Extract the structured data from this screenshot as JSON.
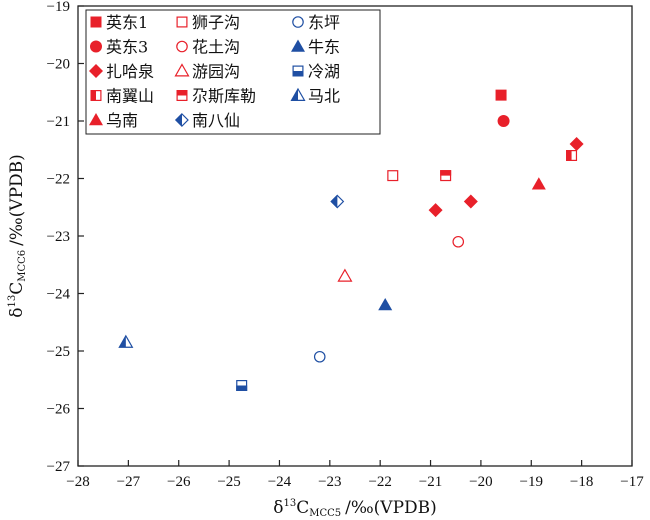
{
  "colors": {
    "red": "#e8202a",
    "blue": "#1f4fa3",
    "axis": "#222222"
  },
  "chart_data": {
    "type": "scatter",
    "xlabel": {
      "delta": "δ",
      "sup": "13",
      "c": "C",
      "sub": "MCC5",
      "unit": "/‰(VPDB)"
    },
    "ylabel": {
      "delta": "δ",
      "sup": "13",
      "c": "C",
      "sub": "MCC6",
      "unit": "/‰(VPDB)"
    },
    "xlim": [
      -28,
      -17
    ],
    "ylim": [
      -27,
      -19
    ],
    "xticks": [
      -28,
      -27,
      -26,
      -25,
      -24,
      -23,
      -22,
      -21,
      -20,
      -19,
      -18,
      -17
    ],
    "yticks": [
      -19,
      -20,
      -21,
      -22,
      -23,
      -24,
      -25,
      -26,
      -27
    ],
    "grid": false,
    "legend_position": "top-left",
    "series": [
      {
        "name": "英东1",
        "color": "red",
        "marker": "square-filled",
        "x": [
          -19.6
        ],
        "y": [
          -20.55
        ]
      },
      {
        "name": "英东3",
        "color": "red",
        "marker": "circle-filled",
        "x": [
          -19.55
        ],
        "y": [
          -21.0
        ]
      },
      {
        "name": "扎哈泉",
        "color": "red",
        "marker": "diamond-filled",
        "x": [
          -20.9,
          -20.2,
          -18.1
        ],
        "y": [
          -22.55,
          -22.4,
          -21.4
        ]
      },
      {
        "name": "南翼山",
        "color": "red",
        "marker": "square-left-half",
        "x": [
          -18.2
        ],
        "y": [
          -21.6
        ]
      },
      {
        "name": "乌南",
        "color": "red",
        "marker": "triangle-filled",
        "x": [
          -18.85
        ],
        "y": [
          -22.1
        ]
      },
      {
        "name": "狮子沟",
        "color": "red",
        "marker": "square-open",
        "x": [
          -21.75
        ],
        "y": [
          -21.95
        ]
      },
      {
        "name": "花土沟",
        "color": "red",
        "marker": "circle-open",
        "x": [
          -20.45
        ],
        "y": [
          -23.1
        ]
      },
      {
        "name": "游园沟",
        "color": "red",
        "marker": "triangle-open",
        "x": [
          -22.7
        ],
        "y": [
          -23.7
        ]
      },
      {
        "name": "尕斯库勒",
        "color": "red",
        "marker": "square-top-half",
        "x": [
          -20.7
        ],
        "y": [
          -21.95
        ]
      },
      {
        "name": "南八仙",
        "color": "blue",
        "marker": "diamond-left-half",
        "x": [
          -22.85
        ],
        "y": [
          -22.4
        ]
      },
      {
        "name": "东坪",
        "color": "blue",
        "marker": "circle-open",
        "x": [
          -23.2
        ],
        "y": [
          -25.1
        ]
      },
      {
        "name": "牛东",
        "color": "blue",
        "marker": "triangle-filled",
        "x": [
          -21.9
        ],
        "y": [
          -24.2
        ]
      },
      {
        "name": "冷湖",
        "color": "blue",
        "marker": "square-bottom-half",
        "x": [
          -24.75
        ],
        "y": [
          -25.6
        ]
      },
      {
        "name": "马北",
        "color": "blue",
        "marker": "triangle-left-half",
        "x": [
          -27.05
        ],
        "y": [
          -24.85
        ]
      }
    ],
    "legend_columns": [
      [
        "英东1",
        "英东3",
        "扎哈泉",
        "南翼山",
        "乌南"
      ],
      [
        "狮子沟",
        "花土沟",
        "游园沟",
        "尕斯库勒",
        "南八仙"
      ],
      [
        "东坪",
        "牛东",
        "冷湖",
        "马北"
      ]
    ]
  }
}
